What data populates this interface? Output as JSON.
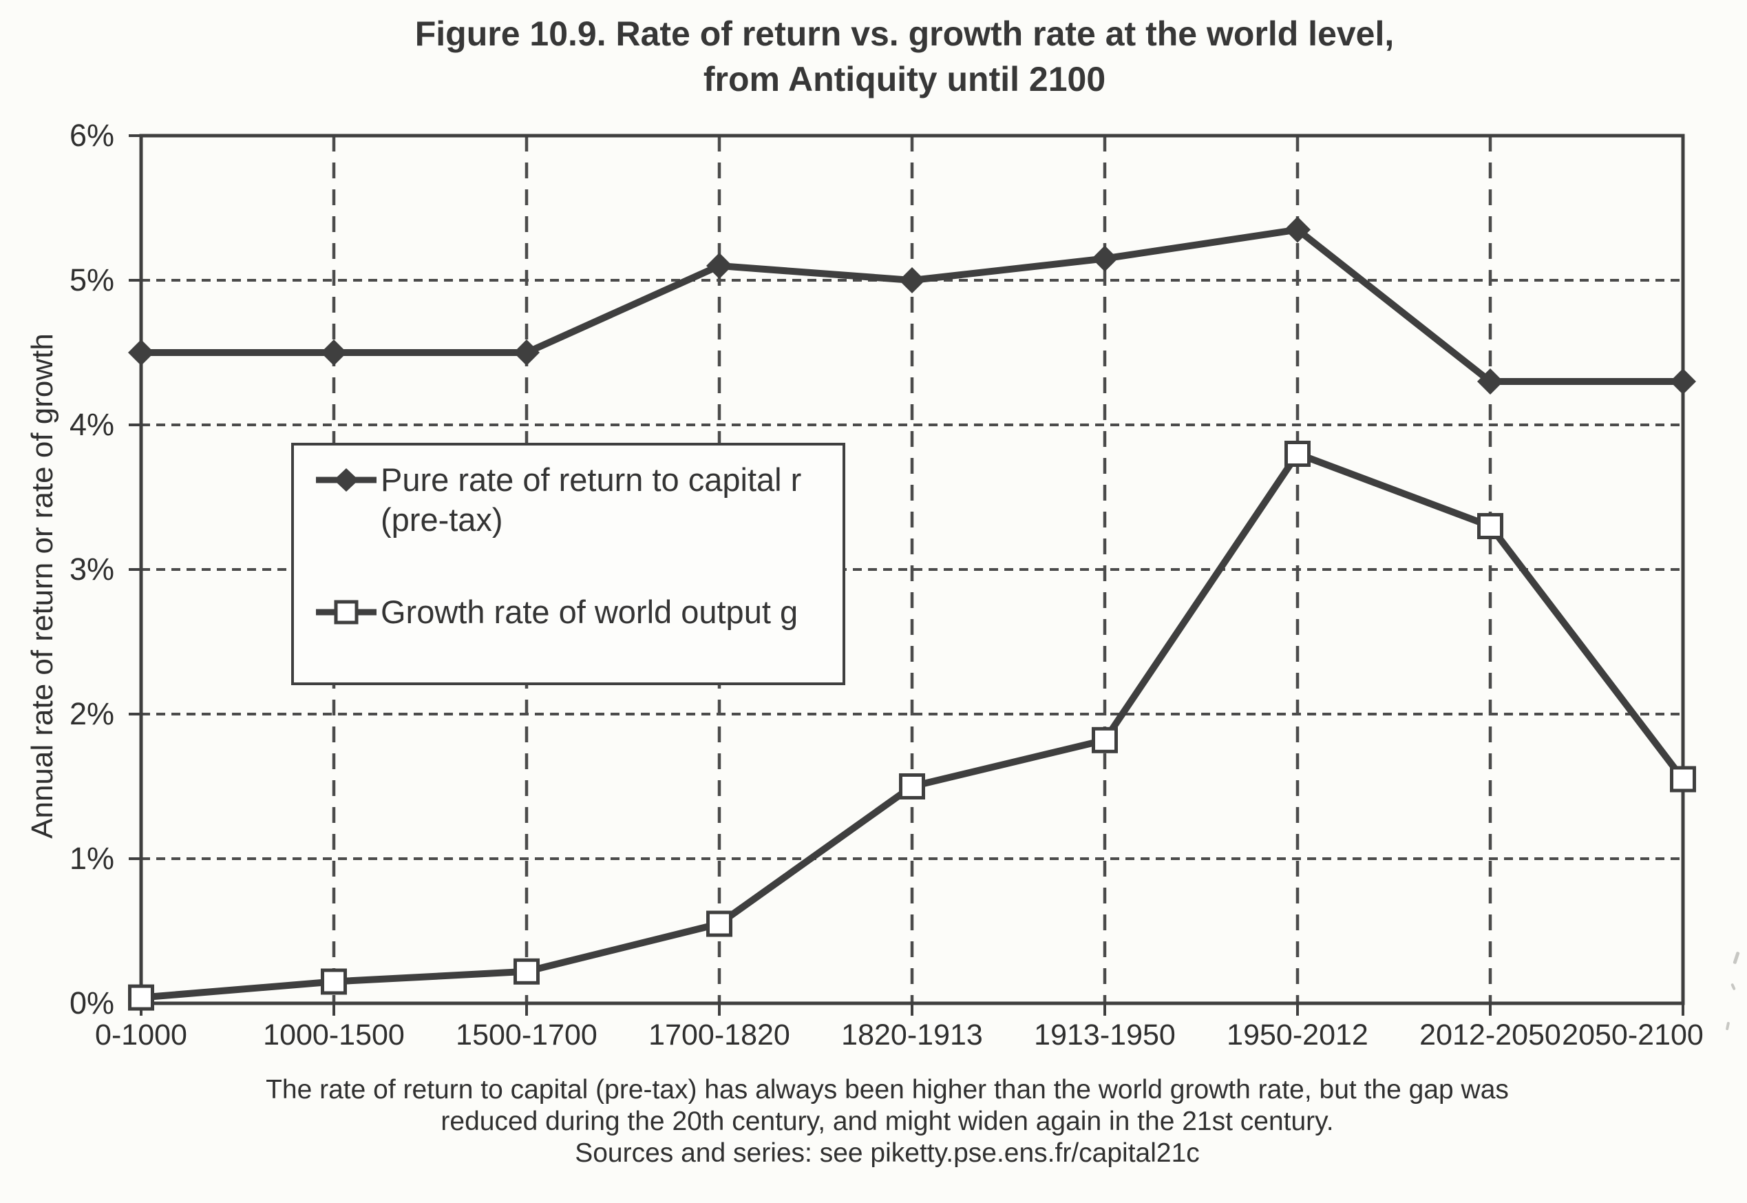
{
  "title": {
    "line1": "Figure 10.9. Rate of return vs. growth rate at the world level,",
    "line2": "from Antiquity until 2100"
  },
  "y_axis": {
    "title": "Annual rate of return or rate of growth",
    "tick_labels": [
      "0%",
      "1%",
      "2%",
      "3%",
      "4%",
      "5%",
      "6%"
    ]
  },
  "legend": {
    "series1_line1": "Pure rate of return to capital r",
    "series1_line2": "(pre-tax)",
    "series2": "Growth rate of world output g"
  },
  "caption": {
    "line1": "The rate of return to capital (pre-tax) has always been higher than the world growth rate, but the gap was",
    "line2": "reduced during the 20th century, and might widen again in the 21st century.",
    "line3": "Sources and series: see piketty.pse.ens.fr/capital21c"
  },
  "colors": {
    "ink": "#3f3f3f",
    "grid": "#4b4b4b",
    "text": "#303030",
    "marker_fill": "#ffffff",
    "background": "#fcfcf9"
  },
  "chart_data": {
    "type": "line",
    "categories": [
      "0-1000",
      "1000-1500",
      "1500-1700",
      "1700-1820",
      "1820-1913",
      "1913-1950",
      "1950-2012",
      "2012-2050",
      "2050-2100"
    ],
    "series": [
      {
        "name": "Pure rate of return to capital r (pre-tax)",
        "marker": "diamond",
        "values": [
          4.5,
          4.5,
          4.5,
          5.1,
          5.0,
          5.15,
          5.35,
          4.3,
          4.3
        ]
      },
      {
        "name": "Growth rate of world output g",
        "marker": "square",
        "values": [
          0.04,
          0.15,
          0.22,
          0.55,
          1.5,
          1.82,
          3.8,
          3.3,
          1.55
        ]
      }
    ],
    "ylim": [
      0,
      6
    ],
    "y_tick_step": 1,
    "y_tick_format": "percent",
    "grid": "dashed-both",
    "legend_position": "inside-upper-left",
    "xlabel": "",
    "ylabel": "Annual rate of return or rate of growth"
  }
}
